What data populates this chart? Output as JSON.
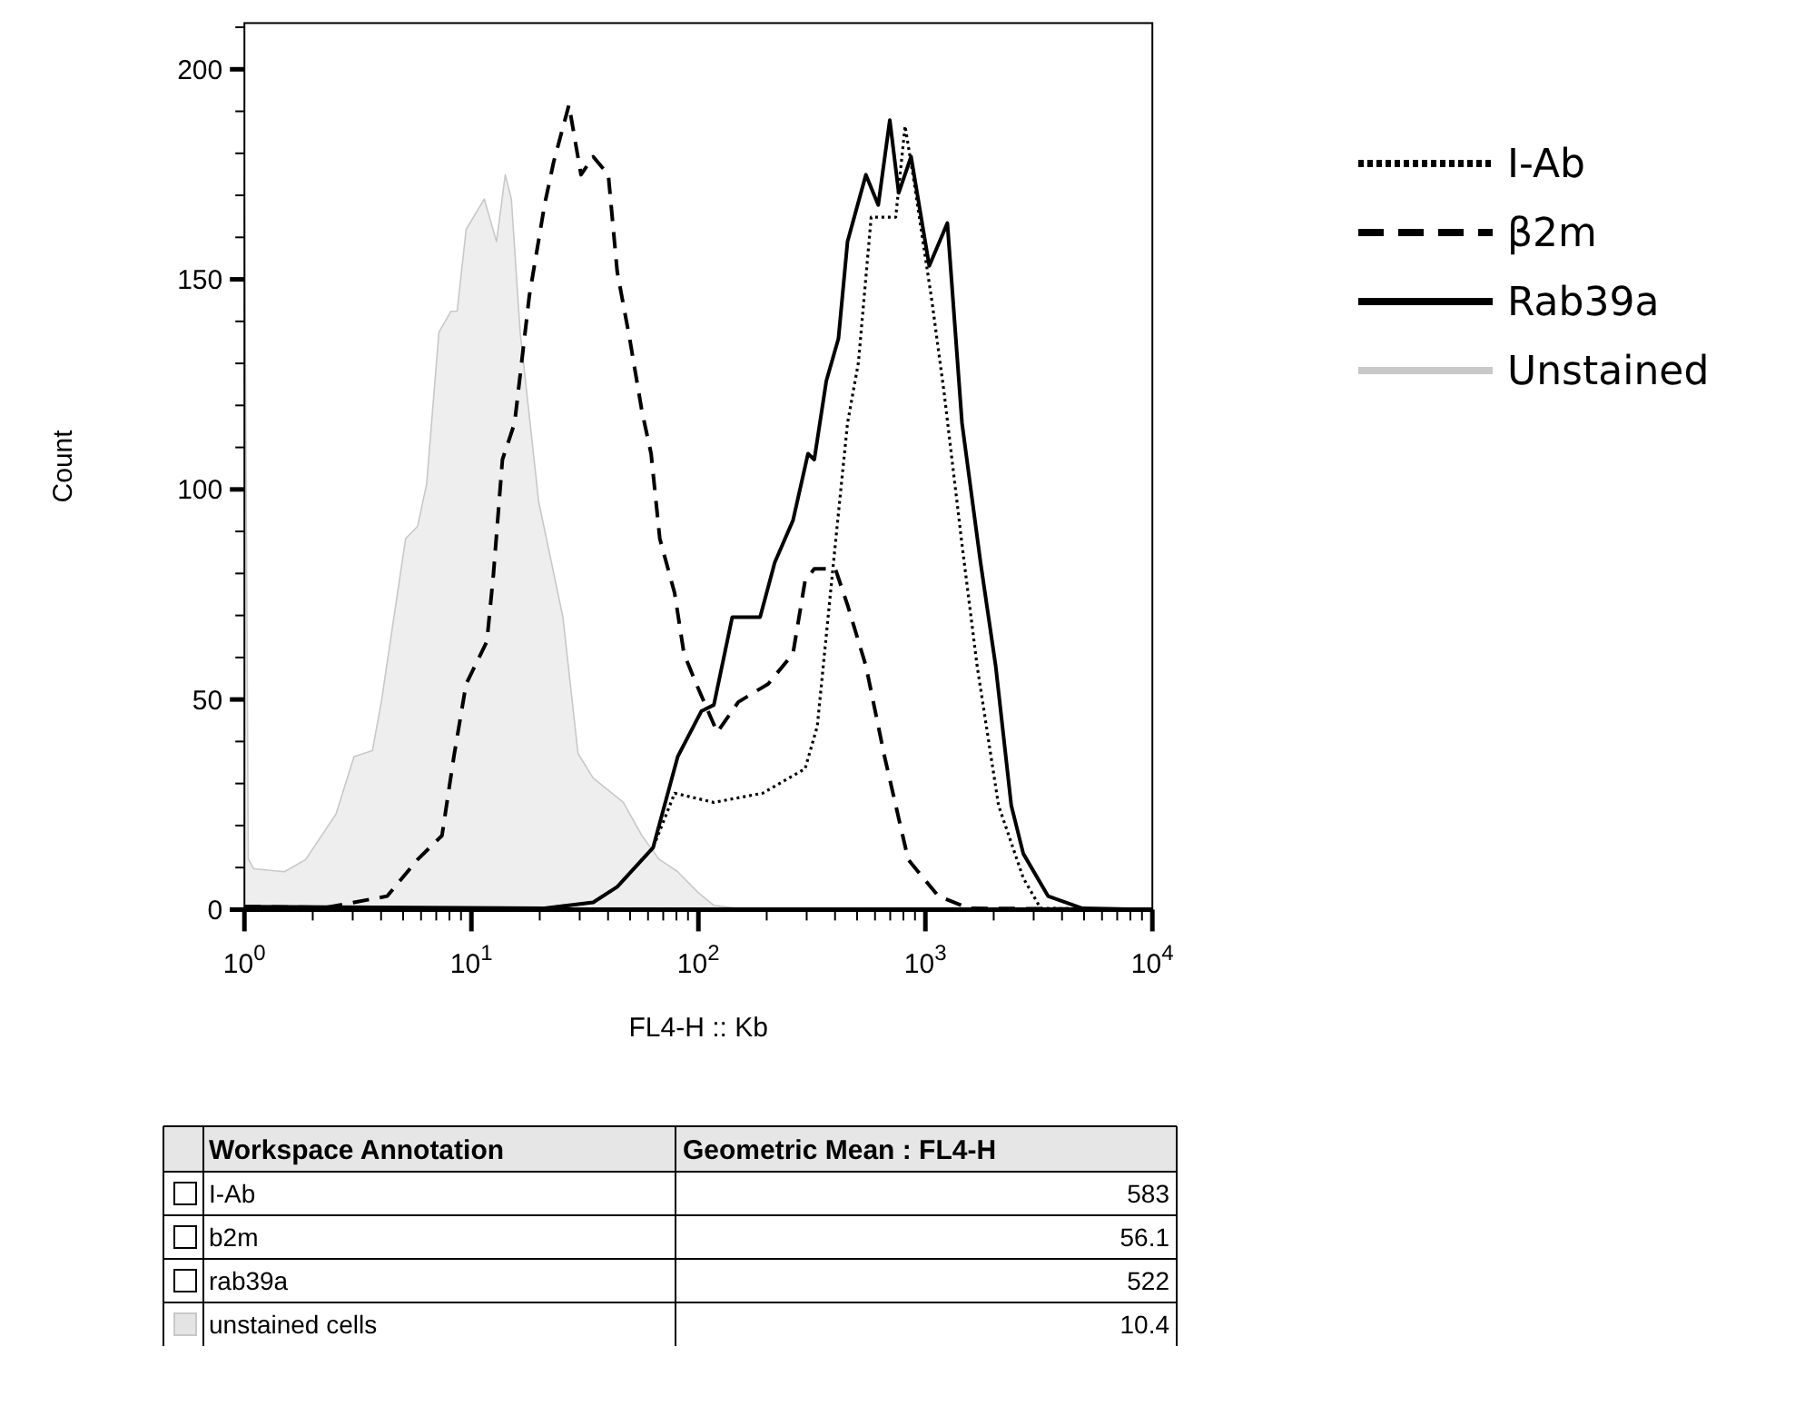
{
  "chart_data": {
    "type": "line",
    "xlabel": "FL4-H :: Kb",
    "ylabel": "Count",
    "log": "x",
    "grid": false,
    "legend": "right",
    "marker": "none",
    "xlim": [
      1,
      10000
    ],
    "ylim": [
      0,
      211
    ],
    "xticks": [
      {
        "value": 1,
        "label": "10$^{0}$"
      },
      {
        "value": 2,
        "label": null
      },
      {
        "value": 3,
        "label": null
      },
      {
        "value": 4,
        "label": null
      },
      {
        "value": 5,
        "label": null
      },
      {
        "value": 6,
        "label": null
      },
      {
        "value": 7,
        "label": null
      },
      {
        "value": 8,
        "label": null
      },
      {
        "value": 9,
        "label": null
      },
      {
        "value": 10,
        "label": "10$^{1}$"
      },
      {
        "value": 20,
        "label": null
      },
      {
        "value": 30,
        "label": null
      },
      {
        "value": 40,
        "label": null
      },
      {
        "value": 50,
        "label": null
      },
      {
        "value": 60,
        "label": null
      },
      {
        "value": 70,
        "label": null
      },
      {
        "value": 80,
        "label": null
      },
      {
        "value": 90,
        "label": null
      },
      {
        "value": 100,
        "label": "10$^{2}$"
      },
      {
        "value": 200,
        "label": null
      },
      {
        "value": 300,
        "label": null
      },
      {
        "value": 400,
        "label": null
      },
      {
        "value": 500,
        "label": null
      },
      {
        "value": 600,
        "label": null
      },
      {
        "value": 700,
        "label": null
      },
      {
        "value": 800,
        "label": null
      },
      {
        "value": 900,
        "label": null
      },
      {
        "value": 1000,
        "label": "10$^{3}$"
      },
      {
        "value": 2000,
        "label": null
      },
      {
        "value": 3000,
        "label": null
      },
      {
        "value": 4000,
        "label": null
      },
      {
        "value": 5000,
        "label": null
      },
      {
        "value": 6000,
        "label": null
      },
      {
        "value": 7000,
        "label": null
      },
      {
        "value": 8000,
        "label": null
      },
      {
        "value": 9000,
        "label": null
      },
      {
        "value": 10000,
        "label": "10$^{4}$"
      }
    ],
    "yticks": [
      0,
      {
        "value": 10,
        "label": null
      },
      {
        "value": 20,
        "label": null
      },
      {
        "value": 30,
        "label": null
      },
      {
        "value": 40,
        "label": null
      },
      50,
      {
        "value": 60,
        "label": null
      },
      {
        "value": 70,
        "label": null
      },
      {
        "value": 80,
        "label": null
      },
      {
        "value": 90,
        "label": null
      },
      100,
      {
        "value": 110,
        "label": null
      },
      {
        "value": 120,
        "label": null
      },
      {
        "value": 130,
        "label": null
      },
      {
        "value": 140,
        "label": null
      },
      150,
      {
        "value": 160,
        "label": null
      },
      {
        "value": 170,
        "label": null
      },
      {
        "value": 180,
        "label": null
      },
      {
        "value": 190,
        "label": null
      },
      200,
      {
        "value": 210,
        "label": null
      }
    ],
    "series": [
      {
        "name": "I-Ab",
        "color": "#000000",
        "line_style": "dotted",
        "x": [
          1,
          21,
          34.4,
          43.9,
          63.1,
          78.6,
          117,
          192,
          295,
          334,
          401,
          454,
          507,
          577,
          740,
          814,
          890,
          1070,
          1210,
          1450,
          1690,
          2100,
          2700,
          3220,
          10000
        ],
        "values": [
          0,
          0.3,
          1.7,
          5.4,
          14.7,
          27.7,
          25.5,
          27.7,
          33.5,
          43.6,
          86.9,
          115.8,
          130.2,
          164.8,
          164.8,
          186.5,
          173.5,
          144.6,
          122.9,
          86.9,
          58,
          24.8,
          7.5,
          0.3,
          0
        ]
      },
      {
        "name": "β2m",
        "color": "#000000",
        "line_style": "dashed",
        "x": [
          1,
          2.31,
          4.26,
          5.79,
          7.42,
          8.37,
          9.48,
          11.7,
          12.5,
          13.7,
          15.5,
          18,
          21,
          23,
          26.9,
          30.4,
          34.4,
          40.1,
          43.9,
          49.8,
          56.4,
          61.9,
          67.6,
          78.6,
          86.4,
          97.9,
          121,
          150,
          203,
          261,
          295,
          324,
          401,
          454,
          547,
          661,
          840,
          1140,
          1550,
          10000
        ],
        "values": [
          0.7,
          0.5,
          3.2,
          11.9,
          17.6,
          36.4,
          53.7,
          63.8,
          79.7,
          107.1,
          115.8,
          146.1,
          167.7,
          177.8,
          191.5,
          174.9,
          179.2,
          174.9,
          151.8,
          135.9,
          118.6,
          108.5,
          88.3,
          75.3,
          60.9,
          53.7,
          42.2,
          49.4,
          53.7,
          60.9,
          78.2,
          81.1,
          81.1,
          72.5,
          58,
          36.4,
          11.9,
          3.2,
          0.3,
          0
        ]
      },
      {
        "name": "Rab39a",
        "color": "#000000",
        "line_style": "solid",
        "x": [
          1,
          21,
          34.4,
          43.9,
          63.1,
          81.1,
          103,
          117,
          141,
          187,
          217,
          261,
          304,
          324,
          366,
          414,
          454,
          547,
          620,
          697,
          763,
          865,
          1040,
          1250,
          1450,
          1750,
          2040,
          2390,
          2700,
          3470,
          4920,
          10000
        ],
        "values": [
          0.7,
          0.3,
          1.7,
          5.4,
          14.7,
          36.4,
          47.2,
          48.7,
          69.6,
          69.6,
          82.6,
          92.6,
          108.5,
          107.1,
          125.8,
          135.9,
          159,
          174.9,
          167.7,
          187.9,
          170.6,
          179.2,
          153.2,
          163.4,
          115.8,
          82.6,
          58,
          24.8,
          13.3,
          3.2,
          0.3,
          0
        ]
      },
      {
        "name": "Unstained",
        "color": "#c8c8c8",
        "type": "area",
        "x": [
          1,
          1.04,
          1.1,
          1.5,
          1.86,
          2.53,
          3.04,
          3.66,
          4.01,
          5.13,
          5.79,
          6.35,
          7.19,
          8.13,
          8.65,
          9.48,
          11.4,
          12.9,
          14.1,
          15,
          16.4,
          19.8,
          25.3,
          29.5,
          34.4,
          46.7,
          56.4,
          67,
          81.1,
          100,
          117,
          150,
          250,
          10000
        ],
        "values": [
          175,
          12,
          9.7,
          9,
          11.9,
          22.7,
          36.4,
          37.8,
          49.4,
          88.3,
          91.2,
          101.3,
          137.4,
          142.4,
          142.4,
          161.9,
          169.1,
          159,
          174.9,
          169.1,
          137.4,
          97,
          69.6,
          37.1,
          31.3,
          25.5,
          17.6,
          12,
          9,
          4,
          1,
          0.3,
          0,
          0
        ]
      }
    ],
    "annotations": [
      "Workspace Annotation",
      "Geometric Mean : FL4-H",
      "I-Ab",
      "583",
      "b2m",
      "56.1",
      "rab39a",
      "522",
      "unstained cells",
      "10.4"
    ]
  }
}
